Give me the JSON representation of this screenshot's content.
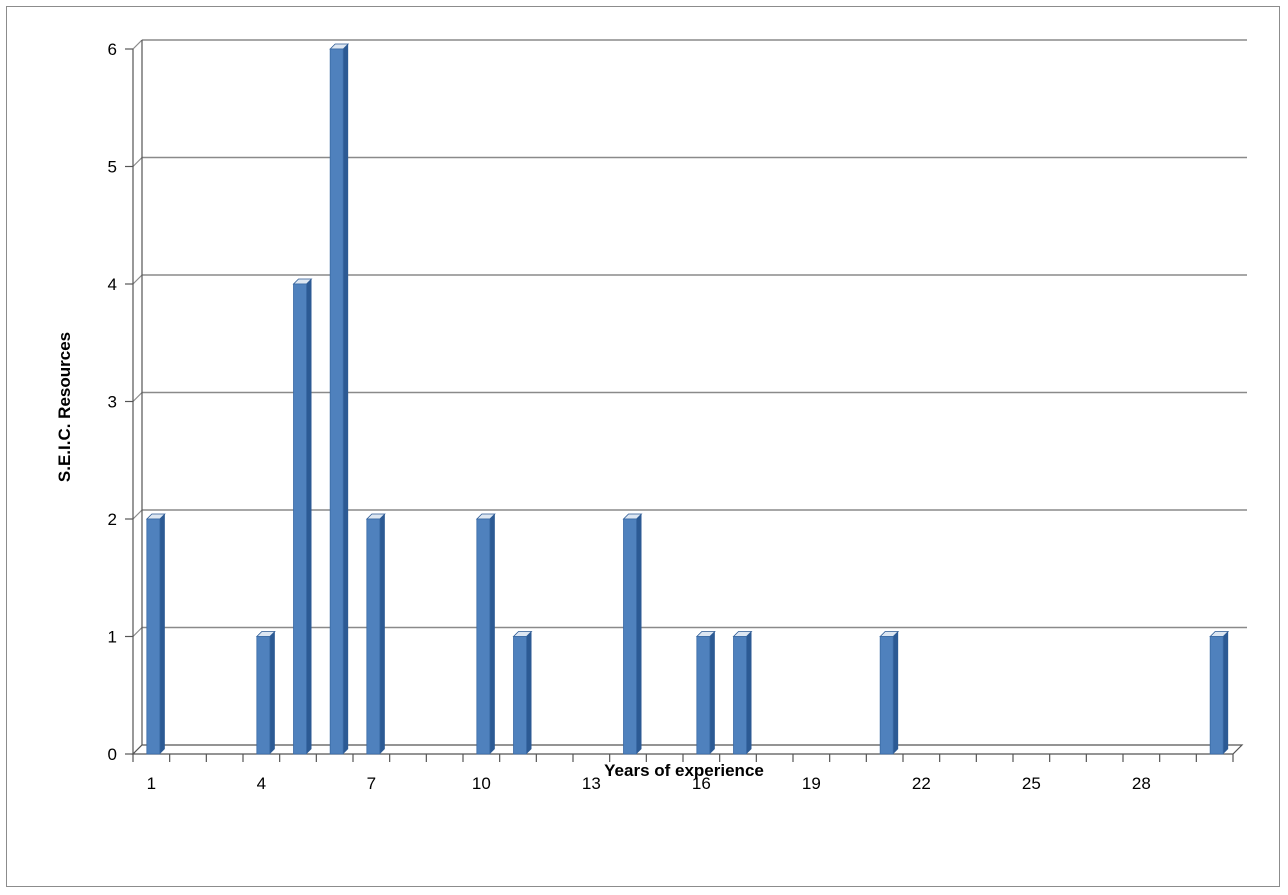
{
  "chart_data": {
    "type": "bar",
    "title": "",
    "xlabel": "Years of experience",
    "ylabel": "S.E.I.C. Resources",
    "x": [
      1,
      2,
      3,
      4,
      5,
      6,
      7,
      8,
      9,
      10,
      11,
      12,
      13,
      14,
      15,
      16,
      17,
      18,
      19,
      20,
      21,
      22,
      23,
      24,
      25,
      26,
      27,
      28,
      29,
      30
    ],
    "values": [
      2,
      0,
      0,
      1,
      4,
      6,
      2,
      0,
      0,
      2,
      1,
      0,
      0,
      2,
      0,
      1,
      1,
      0,
      0,
      0,
      1,
      0,
      0,
      0,
      0,
      0,
      0,
      0,
      0,
      1
    ],
    "x_tick_labels": [
      "1",
      "4",
      "7",
      "10",
      "13",
      "16",
      "19",
      "22",
      "25",
      "28"
    ],
    "y_tick_labels": [
      "0",
      "1",
      "2",
      "3",
      "4",
      "5",
      "6"
    ],
    "ylim": [
      0,
      6
    ],
    "grid": true,
    "style": "3d-column",
    "colors": {
      "bar_front": "#4f81bd",
      "bar_side": "#2c5a94",
      "bar_top": "#dce6f2",
      "gridline": "#8a8a8a",
      "axis": "#555555"
    }
  }
}
